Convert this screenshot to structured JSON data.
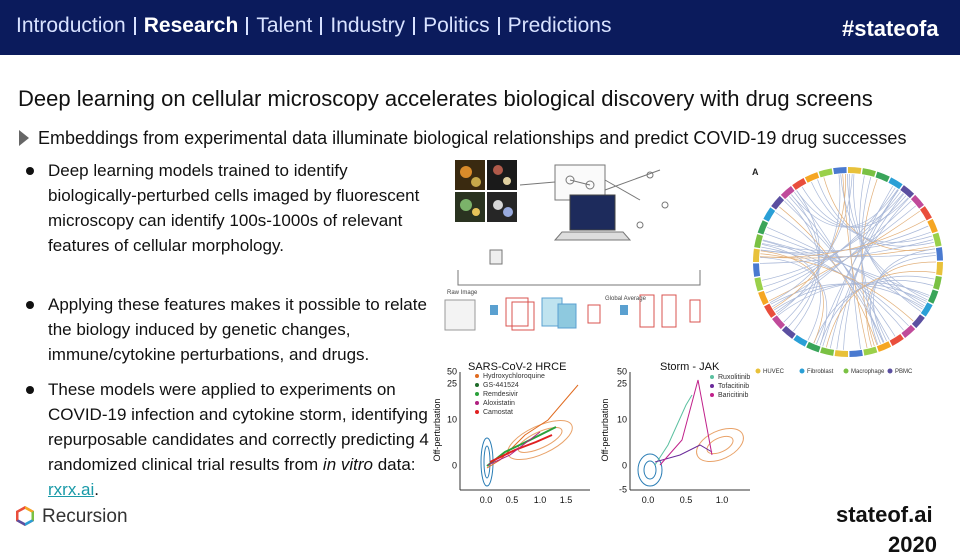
{
  "header": {
    "nav": [
      "Introduction",
      "Research",
      "Talent",
      "Industry",
      "Politics",
      "Predictions"
    ],
    "tag": "#stateofa"
  },
  "title": "Deep learning on cellular microscopy accelerates biological discovery with drug screens",
  "subtitle": "Embeddings from experimental data illuminate biological relationships and predict COVID-19 drug successes",
  "bullets": [
    [
      "Deep learning models trained to identify biologically-perturbed cells imaged by fluorescent microscopy can identify 100s-1000s of relevant features of cellular morphology."
    ],
    [
      "Applying these features makes it possible to relate the biology induced by genetic changes, immune/cytokine perturbations, and drugs."
    ],
    [
      "These models were applied to experiments on COVID-19 infection and cytokine storm, identifying repurposable candidates and correctly predicting 4 randomized clinical trial results from ",
      "in vitro",
      " data: ",
      "rxrx.ai",
      "."
    ]
  ],
  "figures": {
    "pipeline": {
      "labels": [
        "Raw Image",
        "Global Average"
      ]
    },
    "circle": {
      "panel": "A",
      "legend": [
        "HUVEC",
        "Fibroblast",
        "Macrophage",
        "PBMC"
      ]
    },
    "hrce": {
      "title": "SARS-CoV-2 HRCE",
      "y_label": "Off-perturbation",
      "yticks": [
        "50",
        "25",
        "10",
        "0"
      ],
      "xticks": [
        "0.0",
        "0.5",
        "1.0",
        "1.5"
      ],
      "legend": [
        "Hydroxychloroquine",
        "GS-441524",
        "Remdesivir",
        "Aloxistatin",
        "Camostat"
      ]
    },
    "jak": {
      "title": "Storm - JAK",
      "y_label": "Off-perturbation",
      "yticks": [
        "50",
        "25",
        "10",
        "0",
        "-5"
      ],
      "xticks": [
        "0.0",
        "0.5",
        "1.0"
      ],
      "legend": [
        "Ruxolitinib",
        "Tofacitinib",
        "Baricitinib"
      ]
    }
  },
  "footer": {
    "logo": "Recursion",
    "brand": "stateof.ai",
    "year": "2020"
  }
}
